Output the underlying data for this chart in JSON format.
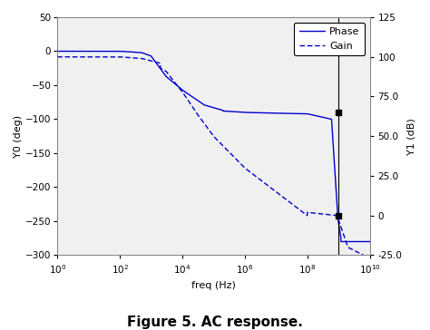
{
  "title": "Figure 5. AC response.",
  "xlabel": "freq (Hz)",
  "ylabel_left": "Y0 (deg)",
  "ylabel_right": "Y1 (dB)",
  "line_color": "#0000CC",
  "background_color": "#F0F0F0",
  "ylim_left": [
    -300,
    50
  ],
  "ylim_right": [
    -25,
    125
  ],
  "xlim_log": [
    0,
    10
  ],
  "yticks_left": [
    50,
    0,
    -50,
    -100,
    -150,
    -200,
    -250,
    -300
  ],
  "yticks_right": [
    125,
    100,
    75.0,
    50.0,
    25.0,
    0.0,
    -25.0
  ],
  "ytick_labels_right": [
    "125",
    "100",
    "75.0",
    "50.0",
    "25.0",
    "0",
    "-25.0"
  ],
  "vline_freq": 1000000000.0,
  "marker1_freq": 1000000000.0,
  "marker1_phase": -90,
  "marker1_gain": 50.0,
  "marker2_freq": 1000000000.0,
  "marker2_phase": -240,
  "marker2_gain": 0.0
}
